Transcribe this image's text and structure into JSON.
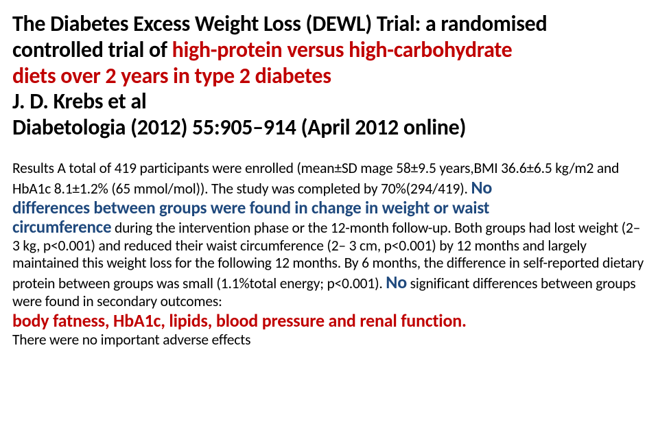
{
  "title": {
    "l1a": "The Diabetes Excess Weight Loss (DEWL) Trial: a randomised",
    "l2a": "controlled trial of ",
    "l2b": "high-protein versus high-carbohydrate",
    "l3": "diets over 2 years in type 2 diabetes",
    "l4": "J. D. Krebs et al",
    "l5": " Diabetologia (2012) 55:905–914 (April 2012 online)"
  },
  "body": {
    "p1a": "Results A total of 419 participants were enrolled (mean±SD mage 58±9.5 years,BMI 36.6±6.5 kg/m2 and HbA1c 8.1±1.2% (65 mmol/mol)). The study was completed by 70%(294/419). ",
    "no1": "No",
    "hl1a": "differences between groups were found in change in weight or waist",
    "hl1b": "circumference",
    "p1b": " during the intervention phase or the 12-month follow-up. Both groups had lost weight (2– 3 kg, p<0.001) and reduced their waist circumference (2– 3 cm, p<0.001) by 12 months and largely maintained this weight loss for the following 12 months. By 6 months, the difference in self-reported dietary protein between groups was small (1.1%total energy; p<0.001). ",
    "no2": "No",
    "p1c": " significant differences between groups were found in secondary outcomes:",
    "out": "body fatness, HbA1c, lipids, blood pressure and renal function.",
    "p2": "There were no important adverse effects"
  }
}
